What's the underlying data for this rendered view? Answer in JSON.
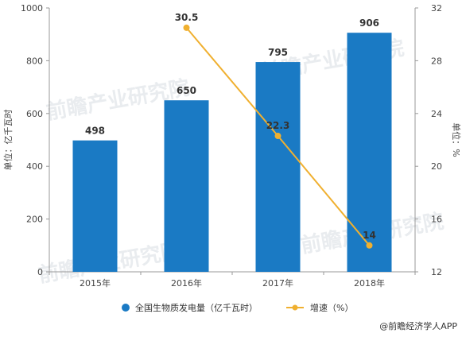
{
  "chart_data": {
    "type": "bar",
    "categories": [
      "2015年",
      "2016年",
      "2017年",
      "2018年"
    ],
    "series": [
      {
        "name": "全国生物质发电量（亿千瓦时）",
        "type": "bar",
        "axis": "left",
        "values": [
          498,
          650,
          795,
          906
        ],
        "labels": [
          "498",
          "650",
          "795",
          "906"
        ],
        "color": "#1a7ac4"
      },
      {
        "name": "增速（%）",
        "type": "line",
        "axis": "right",
        "x": [
          "2016年",
          "2017年",
          "2018年"
        ],
        "values": [
          30.5,
          22.3,
          14
        ],
        "labels": [
          "30.5",
          "22.3",
          "14"
        ],
        "color": "#f0b030"
      }
    ],
    "ylabel": "单位：亿千瓦时",
    "y2label": "单位：%",
    "ylim": [
      0,
      1000
    ],
    "y2lim": [
      12,
      32
    ],
    "yticks": [
      "0",
      "200",
      "400",
      "600",
      "800",
      "1000"
    ],
    "y2ticks": [
      "12",
      "16",
      "20",
      "24",
      "28",
      "32"
    ],
    "grid": false,
    "legend": "bottom-center"
  },
  "watermark": {
    "text": "前瞻产业研究院"
  },
  "credit": {
    "icon": "at-icon",
    "text": "@前瞻经济学人APP"
  }
}
